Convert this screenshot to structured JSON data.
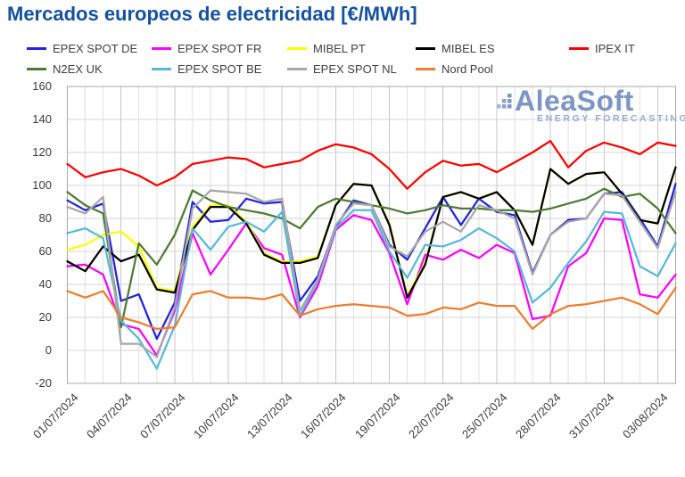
{
  "title": "Mercados europeos de electricidad [€/MWh]",
  "watermark": {
    "name": "AleaSoft",
    "tagline": "ENERGY FORECASTING",
    "text_color": "#7d96c3",
    "tagline_color": "#98acd2"
  },
  "axis_style": {
    "grid_minor_color": "#e2e2e2",
    "grid_major_color": "#c7c7c7",
    "grid_horizontal_color": "#d6d6d6",
    "border_color": "#a8a8a8",
    "tick_text_color": "#3a3a3a"
  },
  "chart_data": {
    "type": "line",
    "title": "Mercados europeos de electricidad [€/MWh]",
    "xlabel": "",
    "ylabel": "",
    "ylim": [
      -20,
      160
    ],
    "y_ticks": [
      160,
      140,
      120,
      100,
      80,
      60,
      40,
      20,
      0,
      -20
    ],
    "grid": true,
    "legend_position": "top",
    "x_unit": "daily",
    "x_points": 35,
    "x_start": "01/07/2024",
    "x_end": "04/08/2024",
    "x_tick_every_days": 3,
    "x_tick_labels": [
      "01/07/2024",
      "04/07/2024",
      "07/07/2024",
      "10/07/2024",
      "13/07/2024",
      "16/07/2024",
      "19/07/2024",
      "22/07/2024",
      "25/07/2024",
      "28/07/2024",
      "31/07/2024",
      "03/08/2024"
    ],
    "legend_rows": [
      [
        "EPEX SPOT DE",
        "EPEX SPOT FR",
        "MIBEL PT",
        "MIBEL ES",
        "IPEX IT"
      ],
      [
        "N2EX UK",
        "EPEX SPOT BE",
        "EPEX SPOT NL",
        "Nord Pool"
      ]
    ],
    "series": [
      {
        "name": "EPEX SPOT DE",
        "color": "#2222e0",
        "values": [
          91,
          85,
          89,
          30,
          34,
          7,
          29,
          90,
          78,
          79,
          92,
          89,
          90,
          30,
          45,
          75,
          91,
          88,
          64,
          55,
          74,
          93,
          76,
          92,
          84,
          82,
          47,
          70,
          79,
          80,
          95,
          96,
          80,
          63,
          101
        ]
      },
      {
        "name": "EPEX SPOT FR",
        "color": "#ff00ff",
        "values": [
          51,
          52,
          46,
          16,
          13,
          -3,
          24,
          71,
          46,
          61,
          77,
          62,
          58,
          20,
          39,
          73,
          82,
          79,
          59,
          28,
          58,
          55,
          61,
          56,
          64,
          59,
          19,
          21,
          51,
          59,
          80,
          79,
          34,
          32,
          46
        ]
      },
      {
        "name": "MIBEL PT",
        "color": "#ffff00",
        "values": [
          61,
          64,
          70,
          72,
          63,
          38,
          36,
          75,
          88,
          88,
          78,
          59,
          54,
          54,
          57,
          88,
          101,
          100,
          77,
          33,
          53,
          93,
          96,
          92,
          96,
          85,
          64,
          110,
          101,
          107,
          108,
          95,
          79,
          77,
          111
        ]
      },
      {
        "name": "MIBEL ES",
        "color": "#000000",
        "values": [
          54,
          48,
          63,
          54,
          58,
          37,
          35,
          73,
          87,
          87,
          77,
          58,
          53,
          53,
          56,
          88,
          101,
          100,
          76,
          32,
          52,
          93,
          96,
          92,
          96,
          85,
          64,
          110,
          101,
          107,
          108,
          95,
          79,
          77,
          111
        ]
      },
      {
        "name": "IPEX IT",
        "color": "#ff0000",
        "values": [
          113,
          105,
          108,
          110,
          106,
          100,
          105,
          113,
          115,
          117,
          116,
          111,
          113,
          115,
          121,
          125,
          123,
          119,
          110,
          98,
          108,
          115,
          112,
          113,
          108,
          114,
          120,
          127,
          111,
          121,
          126,
          123,
          119,
          126,
          124
        ]
      },
      {
        "name": "N2EX UK",
        "color": "#4e7a33",
        "values": [
          96,
          88,
          83,
          14,
          65,
          52,
          70,
          97,
          91,
          87,
          85,
          83,
          80,
          74,
          87,
          92,
          90,
          88,
          86,
          83,
          85,
          88,
          86,
          86,
          85,
          85,
          84,
          86,
          89,
          92,
          98,
          93,
          95,
          86,
          71
        ]
      },
      {
        "name": "EPEX SPOT BE",
        "color": "#58b8d8",
        "values": [
          71,
          74,
          68,
          18,
          7,
          -11,
          15,
          74,
          61,
          75,
          78,
          72,
          84,
          21,
          42,
          74,
          85,
          85,
          60,
          44,
          64,
          63,
          67,
          74,
          68,
          60,
          29,
          38,
          53,
          66,
          84,
          83,
          51,
          45,
          65
        ]
      },
      {
        "name": "EPEX SPOT NL",
        "color": "#a8a8a8",
        "values": [
          87,
          83,
          93,
          4,
          4,
          -4,
          26,
          86,
          97,
          96,
          95,
          90,
          92,
          24,
          43,
          76,
          89,
          88,
          63,
          57,
          72,
          78,
          72,
          88,
          85,
          80,
          46,
          70,
          78,
          80,
          95,
          94,
          78,
          62,
          96
        ]
      },
      {
        "name": "Nord Pool",
        "color": "#ed7d31",
        "values": [
          36,
          32,
          36,
          20,
          17,
          13,
          14,
          34,
          36,
          32,
          32,
          31,
          34,
          21,
          25,
          27,
          28,
          27,
          26,
          21,
          22,
          26,
          25,
          29,
          27,
          27,
          13,
          22,
          27,
          28,
          30,
          32,
          28,
          22,
          38
        ]
      }
    ]
  }
}
